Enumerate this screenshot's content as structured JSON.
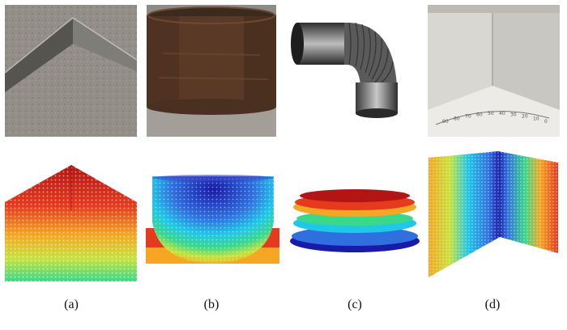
{
  "figure": {
    "captions": [
      "(a)",
      "(b)",
      "(c)",
      "(d)"
    ],
    "protractor_scale_labels": [
      "0",
      "10",
      "20",
      "30",
      "40",
      "50",
      "60",
      "70",
      "80",
      "90"
    ]
  },
  "colors": {
    "pointcloud_colormap": [
      "#1a1aa8",
      "#2f6fe0",
      "#20c8e8",
      "#3ad88a",
      "#c8e23c",
      "#f5a623",
      "#e53a1e",
      "#b31515"
    ],
    "steel_gray": "#6b6b66",
    "rust": "#5a3a26",
    "wall_white": "#e4e2dc"
  },
  "icons": [
    "angle-steel-photo",
    "steel-pipe-photo",
    "elbow-duct-render",
    "wall-corner-photo"
  ]
}
